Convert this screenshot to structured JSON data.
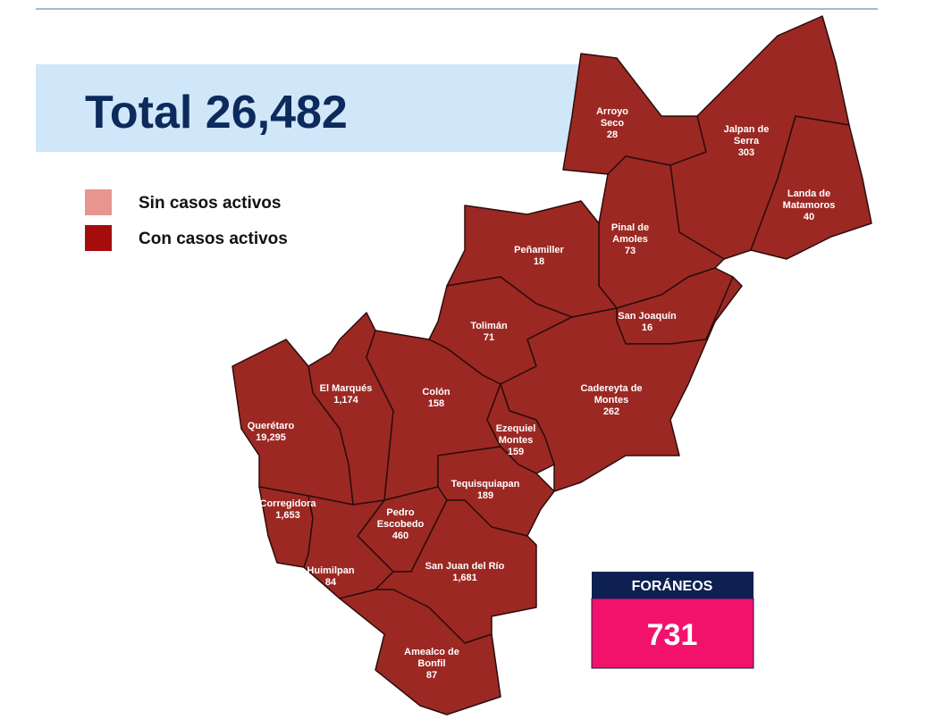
{
  "header": {
    "title": "Total 26,482"
  },
  "legend": [
    {
      "label": "Sin casos activos",
      "color": "#e8948f"
    },
    {
      "label": "Con casos activos",
      "color": "#a50c0c"
    }
  ],
  "municipalities": [
    {
      "name": [
        "Arroyo",
        "Seco"
      ],
      "value": "28"
    },
    {
      "name": [
        "Jalpan de",
        "Serra"
      ],
      "value": "303"
    },
    {
      "name": [
        "Landa de",
        "Matamoros"
      ],
      "value": "40"
    },
    {
      "name": [
        "Pinal de",
        "Amoles"
      ],
      "value": "73"
    },
    {
      "name": [
        "Peñamiller"
      ],
      "value": "18"
    },
    {
      "name": [
        "San Joaquín"
      ],
      "value": "16"
    },
    {
      "name": [
        "Tolimán"
      ],
      "value": "71"
    },
    {
      "name": [
        "Cadereyta de",
        "Montes"
      ],
      "value": "262"
    },
    {
      "name": [
        "El  Marqués"
      ],
      "value": "1,174"
    },
    {
      "name": [
        "Colón"
      ],
      "value": "158"
    },
    {
      "name": [
        "Querétaro"
      ],
      "value": "19,295"
    },
    {
      "name": [
        "Ezequiel",
        "Montes"
      ],
      "value": "159"
    },
    {
      "name": [
        "Tequisquiapan"
      ],
      "value": "189"
    },
    {
      "name": [
        "Corregidora"
      ],
      "value": "1,653"
    },
    {
      "name": [
        "Pedro",
        "Escobedo"
      ],
      "value": "460"
    },
    {
      "name": [
        "Huimilpan"
      ],
      "value": "84"
    },
    {
      "name": [
        "San Juan del Río"
      ],
      "value": "1,681"
    },
    {
      "name": [
        "Amealco de",
        "Bonfil"
      ],
      "value": "87"
    }
  ],
  "foraneos": {
    "label": "FORÁNEOS",
    "value": "731"
  }
}
